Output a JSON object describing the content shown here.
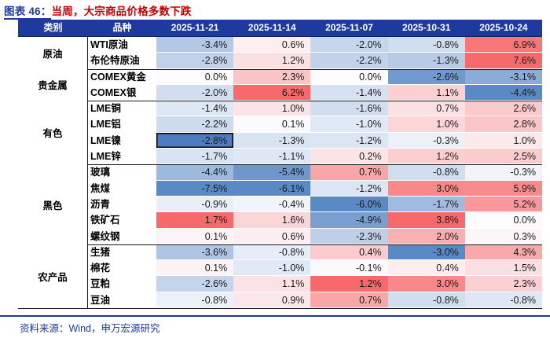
{
  "title": {
    "prefix": "图表 46：",
    "text": "当周，大宗商品价格多数下跌"
  },
  "footer": {
    "source": "资料来源：Wind，申万宏源研究"
  },
  "colors": {
    "navy": "#1E3A9C",
    "title_red": "#C40000",
    "header_bg": "#1E3A9C",
    "scale_blue": "#5A8AC6",
    "scale_white": "#FCFCFF",
    "scale_red": "#F8696B",
    "selected_fill": "#4E7CC0"
  },
  "chart_data": {
    "type": "heatmap",
    "title": "当周，大宗商品价格多数下跌",
    "unit": "% weekly change",
    "row_header_labels": [
      "类别",
      "品种"
    ],
    "columns": [
      "2025-11-21",
      "2025-11-14",
      "2025-11-07",
      "2025-10-31",
      "2025-10-24"
    ],
    "color_scale": {
      "min_color": "#5A8AC6",
      "mid_color": "#FCFCFF",
      "max_color": "#F8696B",
      "midpoint": 0,
      "scope": "per_column"
    },
    "selected_cell": {
      "row": "LME镍",
      "column": "2025-11-21"
    },
    "groups": [
      {
        "category": "原油",
        "rows": [
          {
            "name": "WTI原油",
            "values": [
              -3.4,
              0.6,
              -2.0,
              -0.8,
              6.9
            ]
          },
          {
            "name": "布伦特原油",
            "values": [
              -2.8,
              1.2,
              -2.2,
              -1.3,
              7.6
            ]
          }
        ]
      },
      {
        "category": "贵金属",
        "rows": [
          {
            "name": "COMEX黄金",
            "values": [
              0.0,
              2.3,
              0.0,
              -2.6,
              -3.1
            ]
          },
          {
            "name": "COMEX银",
            "values": [
              -2.0,
              6.2,
              -1.4,
              1.1,
              -4.4
            ]
          }
        ]
      },
      {
        "category": "有色",
        "rows": [
          {
            "name": "LME铜",
            "values": [
              -1.4,
              1.0,
              -1.6,
              0.7,
              2.6
            ]
          },
          {
            "name": "LME铝",
            "values": [
              -2.2,
              0.1,
              -1.0,
              1.0,
              2.8
            ]
          },
          {
            "name": "LME镍",
            "values": [
              -2.8,
              -1.3,
              -1.2,
              -0.3,
              1.0
            ]
          },
          {
            "name": "LME锌",
            "values": [
              -1.7,
              -1.1,
              0.2,
              1.2,
              2.5
            ]
          }
        ]
      },
      {
        "category": "黑色",
        "rows": [
          {
            "name": "玻璃",
            "values": [
              -4.4,
              -5.4,
              0.7,
              -0.8,
              -0.3
            ]
          },
          {
            "name": "焦煤",
            "values": [
              -7.5,
              -6.1,
              -1.2,
              3.0,
              5.9
            ]
          },
          {
            "name": "沥青",
            "values": [
              -0.9,
              -0.4,
              -6.0,
              -1.7,
              5.2
            ]
          },
          {
            "name": "铁矿石",
            "values": [
              1.7,
              1.6,
              -4.9,
              3.8,
              0.0
            ]
          },
          {
            "name": "螺纹钢",
            "values": [
              0.1,
              0.6,
              -2.3,
              2.0,
              0.3
            ]
          }
        ]
      },
      {
        "category": "农产品",
        "rows": [
          {
            "name": "生猪",
            "values": [
              -3.6,
              -0.8,
              0.4,
              -3.0,
              4.3
            ]
          },
          {
            "name": "棉花",
            "values": [
              0.1,
              -1.0,
              -0.1,
              0.4,
              1.5
            ]
          },
          {
            "name": "豆粕",
            "values": [
              -2.6,
              1.1,
              1.2,
              3.0,
              2.3
            ]
          },
          {
            "name": "豆油",
            "values": [
              -0.8,
              0.9,
              0.7,
              -0.8,
              -0.8
            ]
          }
        ]
      }
    ]
  }
}
